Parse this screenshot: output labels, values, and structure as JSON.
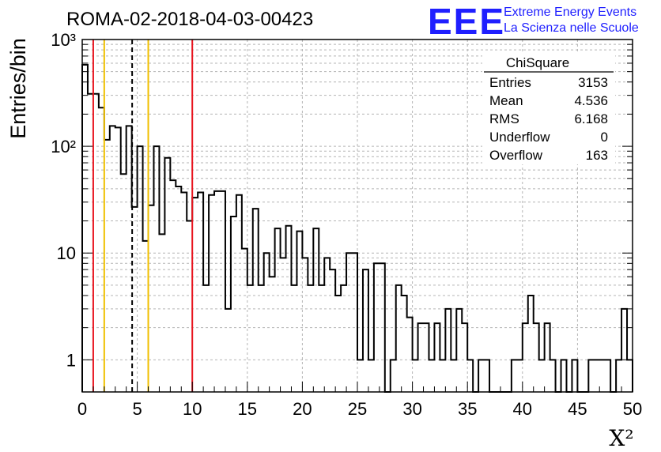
{
  "header": {
    "run_title": "ROMA-02-2018-04-03-00423",
    "logo_text": "EEE",
    "logo_line1": "Extreme Energy Events",
    "logo_line2": "La Scienza nelle Scuole"
  },
  "stats_box": {
    "title": "ChiSquare",
    "rows": [
      {
        "label": "Entries",
        "value": "3153"
      },
      {
        "label": "Mean",
        "value": "4.536"
      },
      {
        "label": "RMS",
        "value": "6.168"
      },
      {
        "label": "Underflow",
        "value": "0"
      },
      {
        "label": "Overflow",
        "value": "163"
      }
    ]
  },
  "colors": {
    "histogram": "#000000",
    "red_line": "#e8141e",
    "yellow_line": "#f0c000",
    "dashed_line": "#000000",
    "grid": "#b4b4b4",
    "logo": "#1f1fff"
  },
  "chart_data": {
    "type": "histogram",
    "xlabel": "X²",
    "ylabel": "Entries/bin",
    "xlim": [
      0,
      50
    ],
    "ylim": [
      0.5,
      1000
    ],
    "y_scale": "log",
    "grid": true,
    "bin_width": 0.5,
    "x_ticks": [
      "0",
      "5",
      "10",
      "15",
      "20",
      "25",
      "30",
      "35",
      "40",
      "45",
      "50"
    ],
    "y_ticks": [
      {
        "value": 1,
        "label": "1"
      },
      {
        "value": 10,
        "label": "10"
      },
      {
        "value": 100,
        "label": "10²"
      },
      {
        "value": 1000,
        "label": "10³"
      }
    ],
    "bin_values": [
      580,
      310,
      310,
      230,
      115,
      155,
      150,
      55,
      155,
      27,
      100,
      13,
      28,
      100,
      15,
      78,
      48,
      42,
      37,
      20,
      33,
      37,
      5,
      35,
      38,
      38,
      3,
      22,
      35,
      11,
      5,
      26,
      5,
      10,
      6,
      17,
      9,
      18,
      5,
      16,
      9,
      5,
      17,
      5,
      9,
      7,
      4,
      5,
      10,
      10,
      1,
      7,
      1,
      8,
      8,
      0,
      1,
      5,
      4,
      2.5,
      1,
      2.2,
      2.2,
      1,
      2.2,
      1,
      3,
      1,
      3,
      2.2,
      1,
      0,
      1,
      1,
      0,
      0,
      0,
      0,
      1,
      1,
      2.2,
      4,
      2.2,
      1,
      2.2,
      1,
      0,
      1,
      0,
      1,
      0,
      0,
      1,
      1,
      1,
      1,
      0,
      1,
      3,
      1
    ],
    "vertical_lines": [
      {
        "x": 1.0,
        "style": "solid",
        "color": "red"
      },
      {
        "x": 2.0,
        "style": "solid",
        "color": "yellow"
      },
      {
        "x": 4.536,
        "style": "dashed",
        "color": "black"
      },
      {
        "x": 6.0,
        "style": "solid",
        "color": "yellow"
      },
      {
        "x": 10.0,
        "style": "solid",
        "color": "red"
      }
    ]
  }
}
